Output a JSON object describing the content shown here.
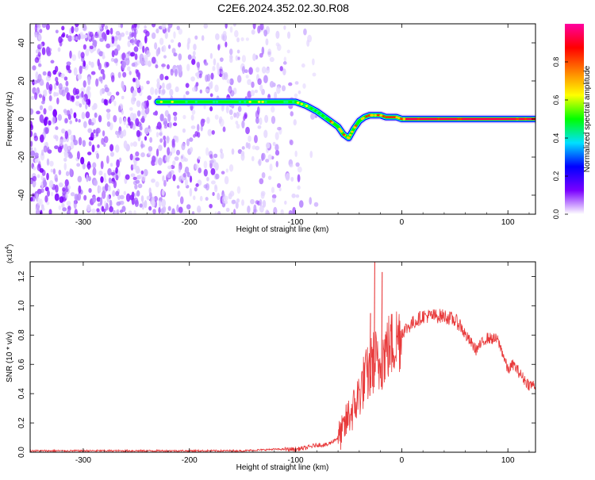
{
  "title": "C2E6.2024.352.02.30.R08",
  "chart_data": [
    {
      "type": "heatmap",
      "xlabel": "Height of straight line (km)",
      "ylabel": "Frequency (Hz)",
      "xlim": [
        -350,
        126
      ],
      "ylim": [
        -50,
        50
      ],
      "xticks": [
        -300,
        -200,
        -100,
        0,
        100
      ],
      "yticks": [
        -40,
        -20,
        0,
        20,
        40
      ],
      "colorbar": {
        "label": "Normalized spectral amplitude",
        "range": [
          0,
          1
        ],
        "ticks": [
          "0.0",
          "0.2",
          "0.4",
          "0.6",
          "0.8"
        ],
        "colors": [
          "#ffffff",
          "#7a00ff",
          "#0000ff",
          "#00e0ff",
          "#00ff00",
          "#ffff00",
          "#ff8000",
          "#ff0000",
          "#ff00a0"
        ]
      },
      "ridge": {
        "x": [
          -230,
          -200,
          -170,
          -140,
          -120,
          -100,
          -90,
          -80,
          -70,
          -60,
          -55,
          -50,
          -45,
          -40,
          -35,
          -30,
          -25,
          -20,
          -15,
          -10,
          -5,
          0,
          20,
          60,
          126
        ],
        "frequency": [
          9,
          9,
          9,
          9,
          9,
          9,
          7,
          4,
          0,
          -4,
          -8,
          -10,
          -5,
          -1,
          1,
          2,
          2,
          2,
          1,
          1,
          1,
          0,
          0,
          0,
          0
        ]
      },
      "noise_region": {
        "x_start": -350,
        "x_end": -80,
        "frequency_range": [
          -50,
          50
        ]
      },
      "grid": false,
      "legend": "none"
    },
    {
      "type": "line",
      "xlabel": "Height of straight line (km)",
      "ylabel": "SNR (10 * v/v)",
      "y_multiplier": "(x10",
      "y_multiplier_exp": "4",
      "y_multiplier_close": ")",
      "xlim": [
        -350,
        126
      ],
      "ylim": [
        0,
        1.3
      ],
      "xticks": [
        -300,
        -200,
        -100,
        0,
        100
      ],
      "yticks": [
        "0.0",
        "0.2",
        "0.4",
        "0.6",
        "0.8",
        "1.0",
        "1.2"
      ],
      "color": "#e8393a",
      "x": [
        -350,
        -300,
        -250,
        -200,
        -150,
        -120,
        -100,
        -90,
        -80,
        -70,
        -60,
        -55,
        -50,
        -45,
        -40,
        -35,
        -30,
        -28,
        -25,
        -22,
        -20,
        -15,
        -10,
        -5,
        0,
        5,
        10,
        20,
        30,
        40,
        50,
        55,
        60,
        70,
        80,
        90,
        95,
        100,
        105,
        110,
        115,
        120,
        126
      ],
      "values": [
        0.01,
        0.01,
        0.01,
        0.01,
        0.01,
        0.02,
        0.02,
        0.03,
        0.05,
        0.05,
        0.1,
        0.15,
        0.25,
        0.3,
        0.4,
        0.5,
        0.55,
        0.6,
        0.65,
        0.55,
        0.62,
        0.7,
        0.73,
        0.77,
        0.82,
        0.85,
        0.88,
        0.93,
        0.93,
        0.93,
        0.9,
        0.87,
        0.8,
        0.7,
        0.78,
        0.77,
        0.68,
        0.56,
        0.6,
        0.55,
        0.5,
        0.46,
        0.46
      ],
      "spikes": [
        {
          "x": -26,
          "value": 1.3
        },
        {
          "x": -19,
          "value": 1.23
        },
        {
          "x": -30,
          "value": 0.95
        }
      ],
      "grid": false,
      "legend": "none"
    }
  ]
}
